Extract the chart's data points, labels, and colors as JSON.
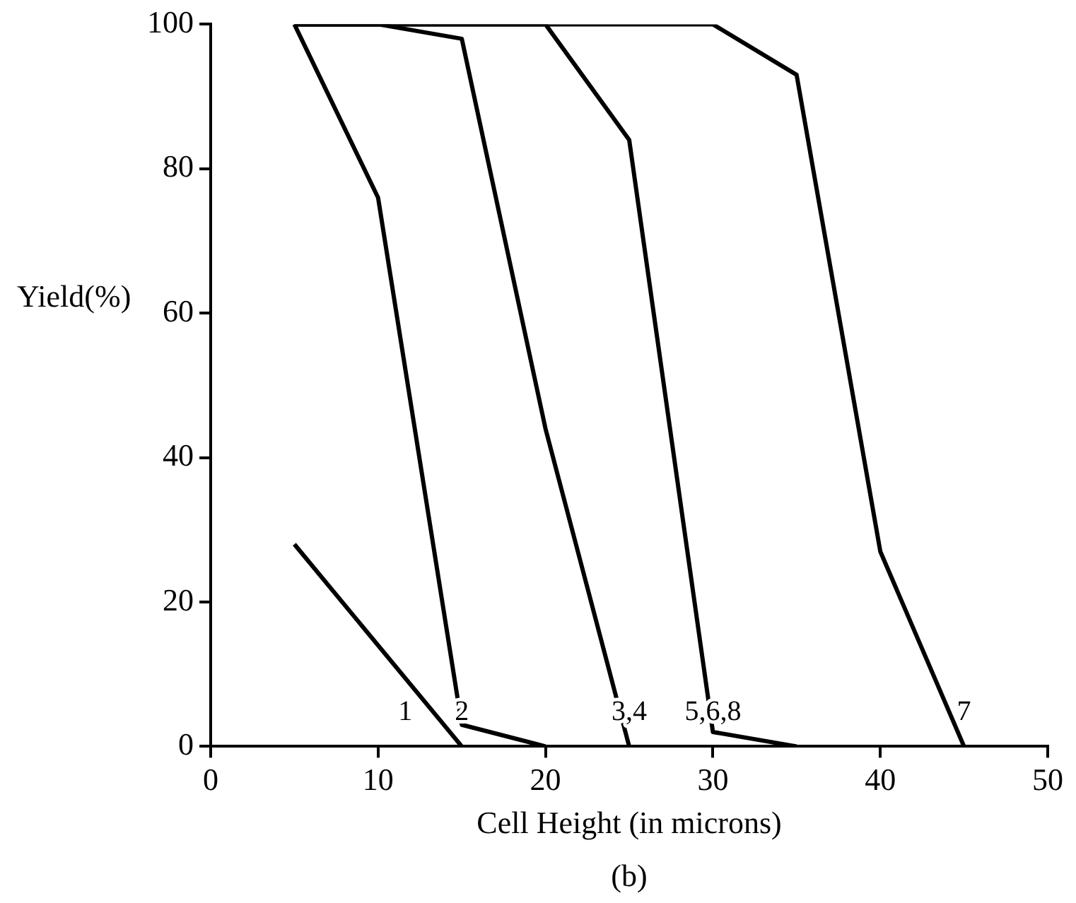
{
  "chart_data": {
    "type": "line",
    "xlabel": "Cell Height (in microns)",
    "ylabel": "Yield(%)",
    "xlim": [
      0,
      50
    ],
    "xticks": [
      0,
      10,
      20,
      30,
      40,
      50
    ],
    "ylim": [
      0,
      100
    ],
    "yticks": [
      0,
      20,
      40,
      60,
      80,
      100
    ],
    "grid": false,
    "legend": false,
    "marker": "none",
    "line_style": "solid",
    "series": [
      {
        "name": "1",
        "color": "#000000",
        "x": [
          5,
          15
        ],
        "values": [
          28,
          0
        ]
      },
      {
        "name": "2",
        "color": "#000000",
        "x": [
          5,
          10,
          15,
          20
        ],
        "values": [
          100,
          76,
          3,
          0
        ]
      },
      {
        "name": "3,4",
        "color": "#000000",
        "x": [
          5,
          10,
          15,
          20,
          25
        ],
        "values": [
          100,
          100,
          98,
          44,
          0
        ]
      },
      {
        "name": "5,6,8",
        "color": "#000000",
        "x": [
          5,
          20,
          25,
          30,
          35
        ],
        "values": [
          100,
          100,
          84,
          2,
          0
        ]
      },
      {
        "name": "7",
        "color": "#000000",
        "x": [
          5,
          30,
          35,
          40,
          45
        ],
        "values": [
          100,
          100,
          93,
          27,
          0
        ]
      }
    ],
    "annotations": [
      "(b)"
    ]
  }
}
